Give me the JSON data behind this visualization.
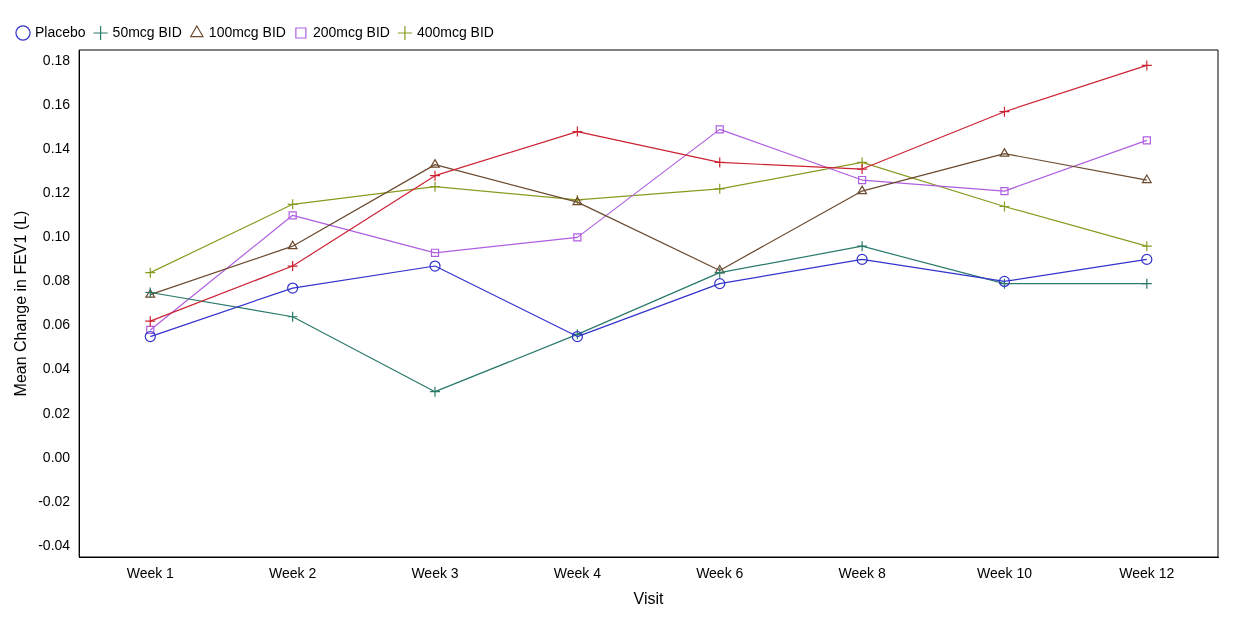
{
  "chart_data": {
    "type": "line",
    "xlabel": "Visit",
    "ylabel": "Mean Change in FEV1 (L)",
    "categories": [
      "Week 1",
      "Week 2",
      "Week 3",
      "Week 4",
      "Week 6",
      "Week 8",
      "Week 10",
      "Week 12"
    ],
    "ylim": [
      -0.045,
      0.185
    ],
    "yticks": [
      {
        "value": -0.04,
        "label": "-0.04"
      },
      {
        "value": -0.02,
        "label": "-0.02"
      },
      {
        "value": 0,
        "label": "0.00"
      },
      {
        "value": 0.02,
        "label": "0.02"
      },
      {
        "value": 0.04,
        "label": "0.04"
      },
      {
        "value": 0.06,
        "label": "0.06"
      },
      {
        "value": 0.08,
        "label": "0.08"
      },
      {
        "value": 0.1,
        "label": "0.10"
      },
      {
        "value": 0.12,
        "label": "0.12"
      },
      {
        "value": 0.14,
        "label": "0.14"
      },
      {
        "value": 0.16,
        "label": "0.16"
      },
      {
        "value": 0.18,
        "label": "0.18"
      }
    ],
    "grid": false,
    "legend": "top left",
    "line_style": "solid",
    "series": [
      {
        "name": "Placebo",
        "color": "#3333cc",
        "marker": "circle",
        "values": [
          0.055,
          0.077,
          0.087,
          0.055,
          0.079,
          0.09,
          0.08,
          0.09
        ]
      },
      {
        "color": "#cc2233",
        "marker": "cross",
        "values": [
          0.062,
          0.087,
          0.128,
          0.148,
          0.134,
          0.131,
          0.157,
          0.178
        ]
      },
      {
        "name": "50mcg BID",
        "color": "#2a7a6a",
        "marker": "cross",
        "values": [
          0.075,
          0.064,
          0.03,
          0.056,
          0.084,
          0.096,
          0.079,
          0.079
        ]
      },
      {
        "name": "100mcg BID",
        "color": "#6b4a2e",
        "marker": "triangle",
        "values": [
          0.074,
          0.096,
          0.133,
          0.116,
          0.085,
          0.121,
          0.138,
          0.126
        ]
      },
      {
        "name": "200mcg BID",
        "color": "#b05ee0",
        "marker": "square",
        "values": [
          0.058,
          0.11,
          0.093,
          0.1,
          0.149,
          0.126,
          0.121,
          0.144
        ]
      },
      {
        "name": "400mcg BID",
        "color": "#8a9a20",
        "marker": "cross",
        "values": [
          0.084,
          0.115,
          0.123,
          0.117,
          0.122,
          0.134,
          0.114,
          0.096
        ]
      }
    ]
  }
}
